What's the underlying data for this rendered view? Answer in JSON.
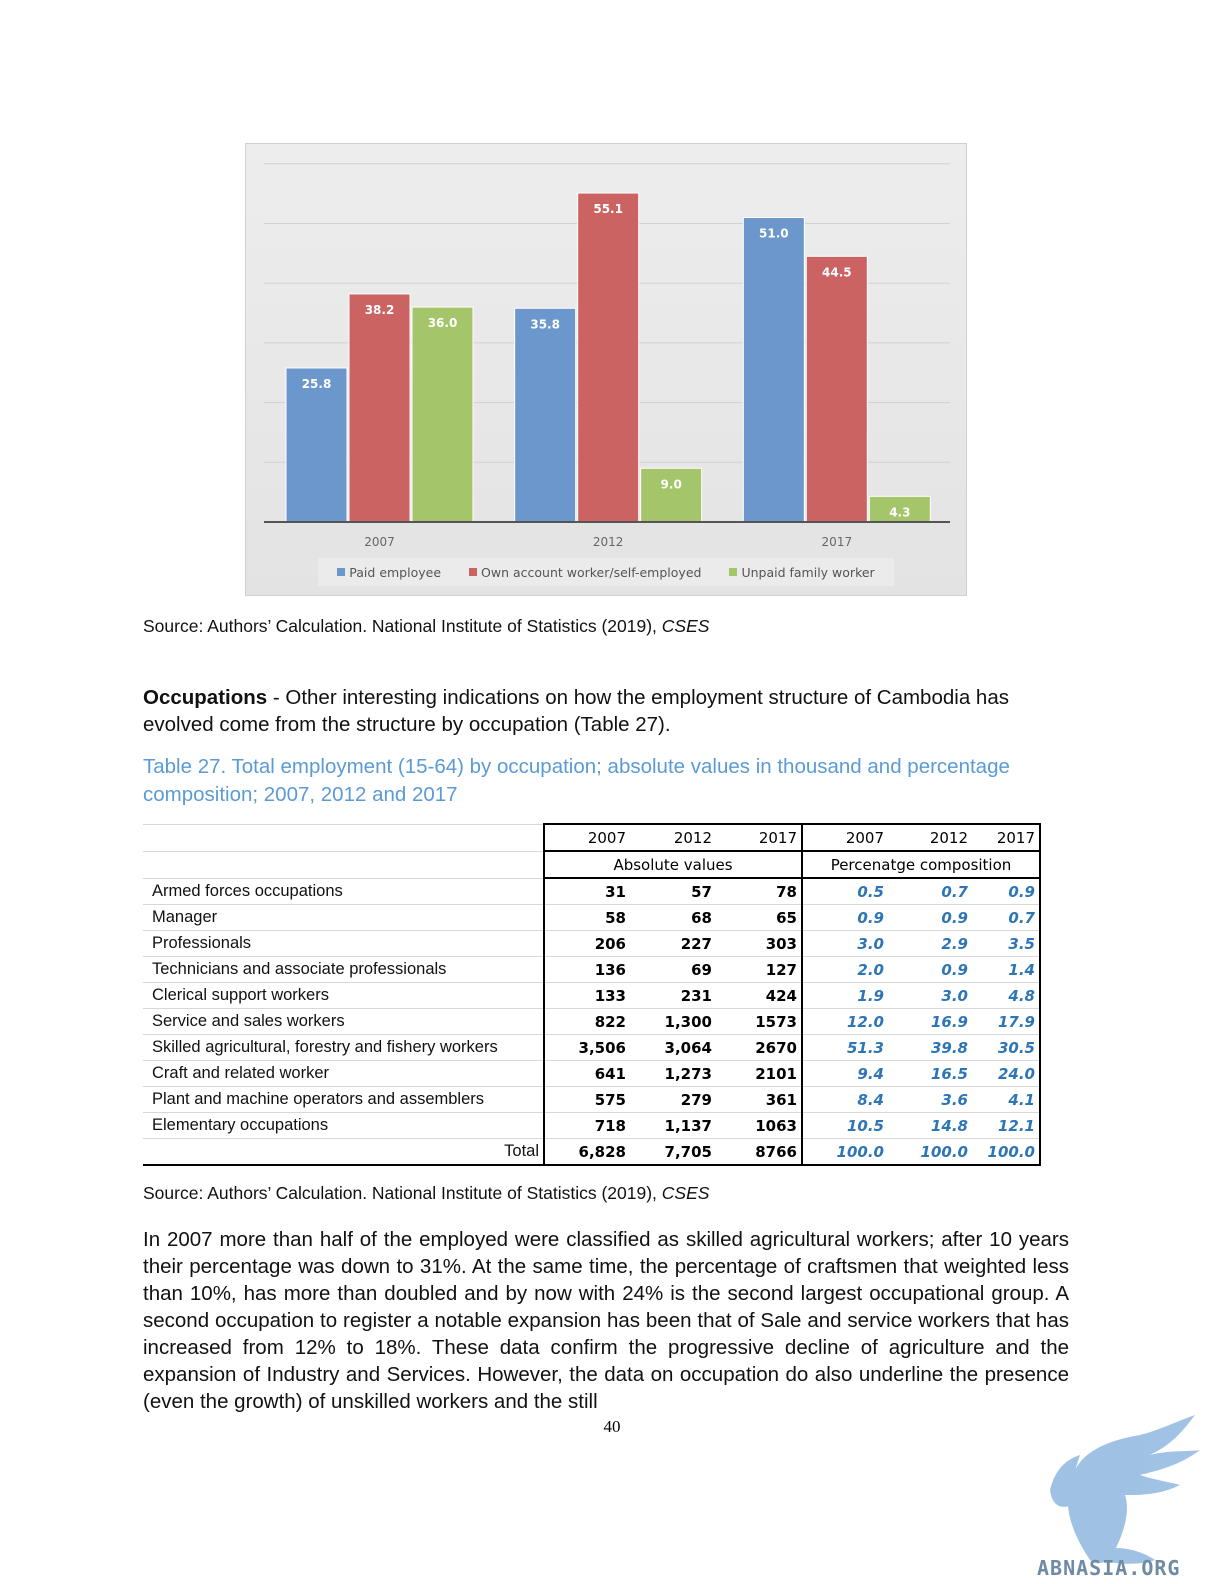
{
  "chart_data": {
    "type": "bar",
    "categories": [
      "2007",
      "2012",
      "2017"
    ],
    "series": [
      {
        "name": "Paid employee",
        "values": [
          25.8,
          35.8,
          51.0
        ],
        "color": "#6b97cc"
      },
      {
        "name": "Own account worker/self-employed",
        "values": [
          38.2,
          55.1,
          44.5
        ],
        "color": "#cb6362"
      },
      {
        "name": "Unpaid family worker",
        "values": [
          36.0,
          9.0,
          4.3
        ],
        "color": "#a4c569"
      }
    ],
    "value_labels": [
      [
        "25.8",
        "35.8",
        "51.0"
      ],
      [
        "38.2",
        "55.1",
        "44.5"
      ],
      [
        "36.0",
        "9.0",
        "4.3"
      ]
    ],
    "ylim": [
      0,
      60
    ],
    "legend": "bottom",
    "grid": true
  },
  "source1": {
    "text": "Source: Authors’ Calculation.  National Institute of Statistics (2019), ",
    "italic": "CSES"
  },
  "occupations": {
    "bold": "Occupations",
    "text": " - Other interesting indications on how the employment structure of Cambodia has evolved come from the structure by occupation (Table 27)."
  },
  "caption": "Table 27. Total employment (15-64) by occupation; absolute values in thousand and percentage composition; 2007, 2012 and 2017",
  "table": {
    "years": [
      "2007",
      "2012",
      "2017",
      "2007",
      "2012",
      "2017"
    ],
    "group_abs": "Absolute values",
    "group_pct": "Percenatge composition",
    "rows": [
      {
        "label": "Armed forces occupations",
        "abs": [
          "31",
          "57",
          "78"
        ],
        "pct": [
          "0.5",
          "0.7",
          "0.9"
        ]
      },
      {
        "label": "Manager",
        "abs": [
          "58",
          "68",
          "65"
        ],
        "pct": [
          "0.9",
          "0.9",
          "0.7"
        ]
      },
      {
        "label": "Professionals",
        "abs": [
          "206",
          "227",
          "303"
        ],
        "pct": [
          "3.0",
          "2.9",
          "3.5"
        ]
      },
      {
        "label": "Technicians and associate professionals",
        "abs": [
          "136",
          "69",
          "127"
        ],
        "pct": [
          "2.0",
          "0.9",
          "1.4"
        ]
      },
      {
        "label": "Clerical support workers",
        "abs": [
          "133",
          "231",
          "424"
        ],
        "pct": [
          "1.9",
          "3.0",
          "4.8"
        ]
      },
      {
        "label": "Service and sales workers",
        "abs": [
          "822",
          "1,300",
          "1573"
        ],
        "pct": [
          "12.0",
          "16.9",
          "17.9"
        ]
      },
      {
        "label": "Skilled agricultural, forestry and fishery workers",
        "abs": [
          "3,506",
          "3,064",
          "2670"
        ],
        "pct": [
          "51.3",
          "39.8",
          "30.5"
        ]
      },
      {
        "label": "Craft and related worker",
        "abs": [
          "641",
          "1,273",
          "2101"
        ],
        "pct": [
          "9.4",
          "16.5",
          "24.0"
        ]
      },
      {
        "label": "Plant and machine operators and assemblers",
        "abs": [
          "575",
          "279",
          "361"
        ],
        "pct": [
          "8.4",
          "3.6",
          "4.1"
        ]
      },
      {
        "label": "Elementary occupations",
        "abs": [
          "718",
          "1,137",
          "1063"
        ],
        "pct": [
          "10.5",
          "14.8",
          "12.1"
        ]
      }
    ],
    "total": {
      "label": "Total",
      "abs": [
        "6,828",
        "7,705",
        "8766"
      ],
      "pct": [
        "100.0",
        "100.0",
        "100.0"
      ]
    }
  },
  "source2": {
    "text": "Source: Authors’ Calculation.  National Institute of Statistics (2019), ",
    "italic": "CSES"
  },
  "body_paragraph": "In 2007 more than half of the employed were classified as skilled agricultural workers; after 10 years their percentage was down to 31%. At the same time, the percentage of craftsmen that weighted less than 10%, has more than doubled and by now with 24% is the second largest occupational group. A second occupation to register a notable expansion has been that of Sale and service workers that has increased from 12% to 18%. These data confirm the progressive decline of agriculture and the expansion of Industry and Services. However, the data on occupation do also underline the presence (even the growth) of unskilled workers and the still",
  "page_number": "40",
  "watermark": {
    "text": "ABNASIA.ORG",
    "icon": "griffin-logo-icon"
  }
}
